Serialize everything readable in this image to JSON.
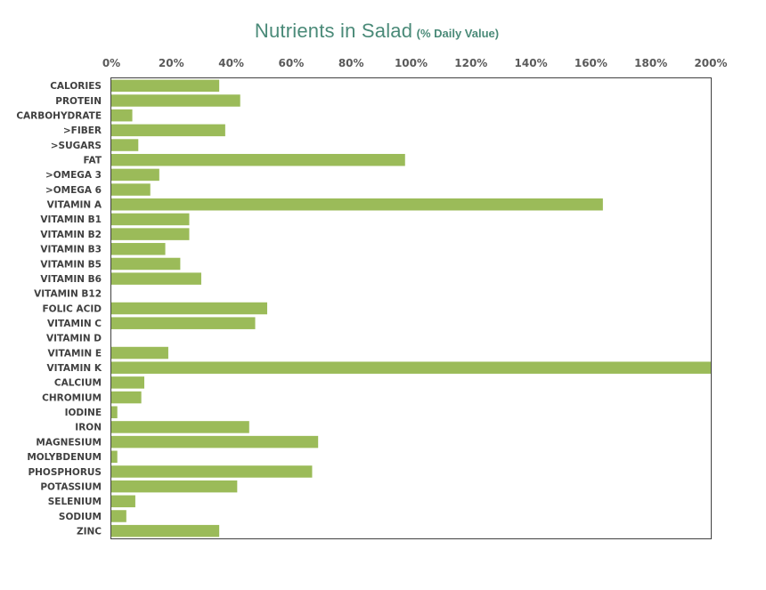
{
  "chart_data": {
    "type": "bar",
    "orientation": "horizontal",
    "title": "Nutrients in Salad",
    "subtitle": "(% Daily Value)",
    "x_axis": {
      "min": 0,
      "max": 200,
      "step": 20,
      "position": "top",
      "tick_labels": [
        "0%",
        "20%",
        "40%",
        "60%",
        "80%",
        "100%",
        "120%",
        "140%",
        "160%",
        "180%",
        "200%"
      ]
    },
    "grid": false,
    "legend": "none",
    "bar_color": "#9bbb59",
    "categories": [
      "CALORIES",
      "PROTEIN",
      "CARBOHYDRATE",
      ">FIBER",
      ">SUGARS",
      "FAT",
      ">OMEGA 3",
      ">OMEGA 6",
      "VITAMIN A",
      "VITAMIN B1",
      "VITAMIN B2",
      "VITAMIN B3",
      "VITAMIN B5",
      "VITAMIN B6",
      "VITAMIN B12",
      "FOLIC ACID",
      "VITAMIN C",
      "VITAMIN D",
      "VITAMIN E",
      "VITAMIN K",
      "CALCIUM",
      "CHROMIUM",
      "IODINE",
      "IRON",
      "MAGNESIUM",
      "MOLYBDENUM",
      "PHOSPHORUS",
      "POTASSIUM",
      "SELENIUM",
      "SODIUM",
      "ZINC"
    ],
    "values": [
      36,
      43,
      7,
      38,
      9,
      98,
      16,
      13,
      164,
      26,
      26,
      18,
      23,
      30,
      0,
      52,
      48,
      0,
      19,
      200,
      11,
      10,
      2,
      46,
      69,
      2,
      67,
      42,
      8,
      5,
      36
    ]
  }
}
